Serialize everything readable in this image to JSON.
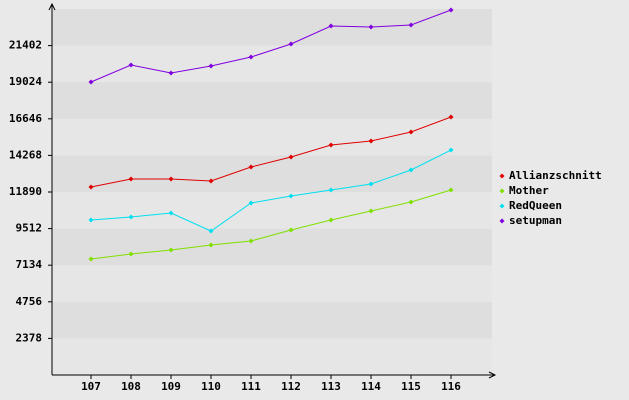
{
  "chart_data": {
    "type": "line",
    "categories": [
      "107",
      "108",
      "109",
      "110",
      "111",
      "112",
      "113",
      "114",
      "115",
      "116"
    ],
    "series": [
      {
        "name": "Allianzschnitt",
        "color": "#e00000",
        "values": [
          12214,
          12734,
          12734,
          12604,
          13514,
          14163,
          14943,
          15203,
          15788,
          16762
        ]
      },
      {
        "name": "Mother",
        "color": "#80e000",
        "values": [
          7536,
          7861,
          8121,
          8446,
          8706,
          9421,
          10070,
          10655,
          11240,
          12019
        ]
      },
      {
        "name": "RedQueen",
        "color": "#00e0f0",
        "values": [
          10070,
          10265,
          10525,
          9356,
          11175,
          11630,
          12019,
          12409,
          13319,
          14618
        ]
      },
      {
        "name": "setupman",
        "color": "#8000e0",
        "values": [
          19036,
          20141,
          19621,
          20076,
          20660,
          21505,
          22674,
          22609,
          22739,
          23714
        ]
      }
    ],
    "ylim": [
      0,
      23780
    ],
    "yticks": [
      2378,
      4756,
      7134,
      9512,
      11890,
      14268,
      16646,
      19024,
      21402
    ],
    "grid": "bands",
    "legend": "right"
  }
}
